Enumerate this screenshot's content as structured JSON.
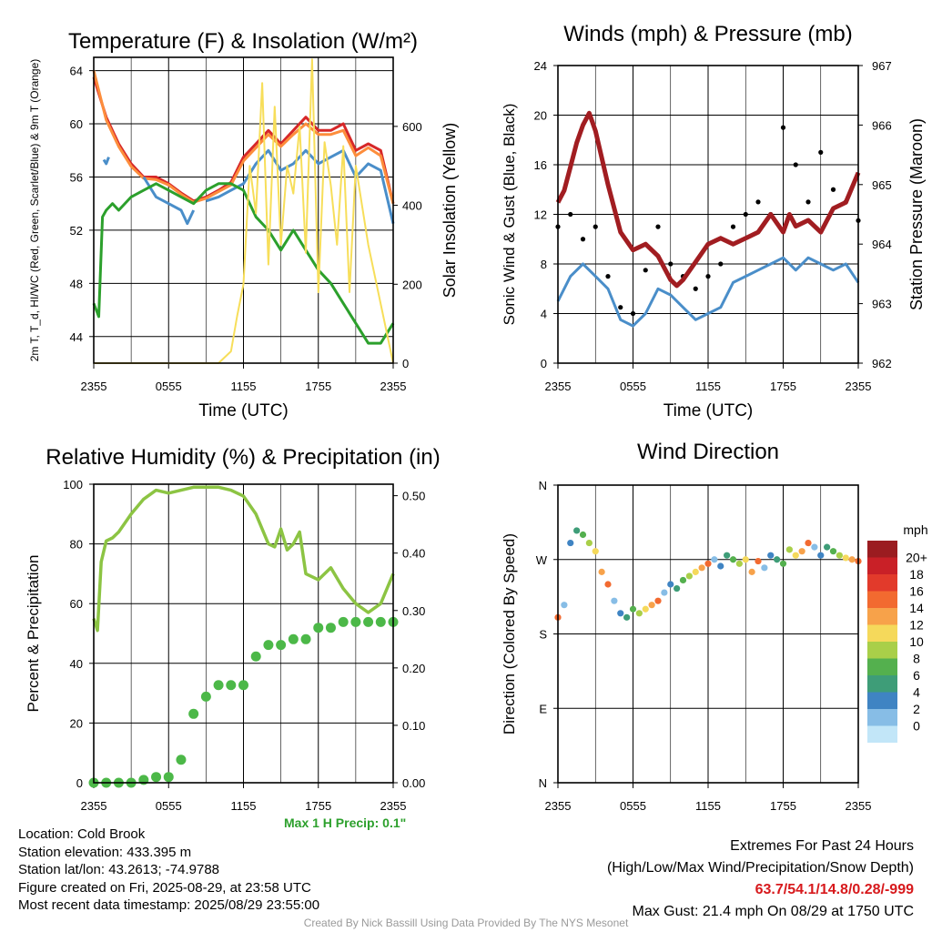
{
  "chart_data": [
    {
      "type": "line",
      "title": "Temperature (F) & Insolation (W/m²)",
      "xlabel": "Time (UTC)",
      "ylabel": "2m T, T_d, HI/WC (Red, Green, Scarlet/Blue) & 9m T (Orange)",
      "ylabel2": "Solar Insolation (Yellow)",
      "x_ticks": [
        "2355",
        "0555",
        "1155",
        "1755",
        "2355"
      ],
      "ylim": [
        42,
        65
      ],
      "y_ticks": [
        44,
        48,
        52,
        56,
        60,
        64
      ],
      "y2lim": [
        0,
        775
      ],
      "y2_ticks": [
        0,
        200,
        400,
        600
      ],
      "grid": true,
      "series": [
        {
          "name": "2m T",
          "color": "#d62728",
          "axis": "left",
          "x": [
            0,
            1,
            2,
            3,
            4,
            5,
            6,
            7,
            8,
            9,
            10,
            11,
            12,
            13,
            14,
            15,
            16,
            17,
            18,
            19,
            20,
            21,
            22,
            23,
            24
          ],
          "values": [
            63.5,
            60.5,
            58.5,
            57,
            56,
            56,
            55.5,
            54.8,
            54.2,
            54.5,
            55,
            55.6,
            57.5,
            58.5,
            59.5,
            58.5,
            59.5,
            60.5,
            59.5,
            59.5,
            60,
            58,
            58.5,
            58,
            54
          ]
        },
        {
          "name": "9m T",
          "color": "#fd8d3c",
          "axis": "left",
          "x": [
            0,
            1,
            2,
            3,
            4,
            5,
            6,
            7,
            8,
            9,
            10,
            11,
            12,
            13,
            14,
            15,
            16,
            17,
            18,
            19,
            20,
            21,
            22,
            23,
            24
          ],
          "values": [
            64,
            60.3,
            58.3,
            56.8,
            55.9,
            55.8,
            55.4,
            54.7,
            54.1,
            54.4,
            54.9,
            55.4,
            57.2,
            58.2,
            59.2,
            58.3,
            59.2,
            60,
            59.2,
            59.2,
            59.5,
            57.6,
            58.2,
            57.6,
            54
          ]
        },
        {
          "name": "HI/WC",
          "color": "#4a8ec9",
          "axis": "left",
          "x": [
            0.8,
            1,
            1.2,
            null,
            4,
            5,
            6,
            7,
            7.5,
            8,
            null,
            9,
            10,
            11,
            12,
            13,
            14,
            15,
            16,
            17,
            18,
            19,
            20,
            21,
            22,
            23,
            24
          ],
          "values": [
            57.3,
            57,
            57.5,
            null,
            56,
            54.5,
            54,
            53.5,
            52.5,
            53.5,
            null,
            54.2,
            54.5,
            55,
            55.5,
            57,
            58,
            56.5,
            57,
            58,
            57,
            57.5,
            58,
            56,
            57,
            56.5,
            52.5
          ]
        },
        {
          "name": "T_d",
          "color": "#2ca02c",
          "axis": "left",
          "x": [
            0,
            0.4,
            0.7,
            1,
            1.5,
            2,
            3,
            4,
            5,
            6,
            7,
            8,
            9,
            10,
            11,
            12,
            13,
            14,
            15,
            16,
            17,
            18,
            19,
            20,
            21,
            22,
            23,
            24
          ],
          "values": [
            46.5,
            45.5,
            53,
            53.5,
            54,
            53.5,
            54.5,
            55,
            55.5,
            55,
            54.5,
            54,
            55,
            55.5,
            55.5,
            55,
            53,
            52,
            50.5,
            52,
            50.5,
            49,
            48,
            46.5,
            45,
            43.5,
            43.5,
            45
          ]
        },
        {
          "name": "Solar",
          "color": "#f7de5a",
          "axis": "right",
          "x": [
            0,
            10,
            11,
            11.5,
            12,
            12.5,
            13,
            13.5,
            14,
            14.5,
            15,
            15.5,
            16,
            16.5,
            17,
            17.5,
            18,
            18.5,
            19,
            19.5,
            20,
            20.5,
            21,
            22,
            23,
            24
          ],
          "values": [
            0,
            0,
            30,
            120,
            200,
            500,
            380,
            710,
            250,
            650,
            300,
            500,
            430,
            600,
            280,
            770,
            180,
            560,
            450,
            300,
            550,
            180,
            500,
            300,
            150,
            0
          ]
        }
      ]
    },
    {
      "type": "line",
      "title": "Winds (mph) & Pressure (mb)",
      "xlabel": "Time (UTC)",
      "ylabel": "Sonic Wind & Gust (Blue, Black)",
      "ylabel2": "Station Pressure (Maroon)",
      "x_ticks": [
        "2355",
        "0555",
        "1155",
        "1755",
        "2355"
      ],
      "ylim": [
        0,
        24
      ],
      "y_ticks": [
        0,
        4,
        8,
        12,
        16,
        20,
        24
      ],
      "y2lim": [
        962,
        967
      ],
      "y2_ticks": [
        962,
        963,
        964,
        965,
        966,
        967
      ],
      "grid": true,
      "series": [
        {
          "name": "Sonic Wind",
          "color": "#4a8ec9",
          "axis": "left",
          "x": [
            0,
            1,
            2,
            3,
            4,
            5,
            6,
            7,
            8,
            9,
            10,
            11,
            12,
            13,
            14,
            15,
            16,
            17,
            18,
            19,
            20,
            21,
            22,
            23,
            24
          ],
          "values": [
            5,
            7,
            8,
            7,
            6,
            3.5,
            3,
            4,
            6,
            5.5,
            4.5,
            3.5,
            4,
            4.5,
            6.5,
            7,
            7.5,
            8,
            8.5,
            7.5,
            8.5,
            8,
            7.5,
            8,
            6.5
          ]
        },
        {
          "name": "Gust",
          "color": "#000000",
          "axis": "left",
          "x": [
            0,
            1,
            2,
            3,
            4,
            5,
            6,
            7,
            8,
            9,
            10,
            11,
            12,
            13,
            14,
            15,
            16,
            17,
            18,
            19,
            20,
            21,
            22,
            23,
            24
          ],
          "values": [
            11,
            12,
            10,
            11,
            7,
            4.5,
            4,
            7.5,
            11,
            8,
            7,
            6,
            7,
            8,
            11,
            12,
            13,
            12,
            19,
            16,
            13,
            17,
            14,
            13,
            11.5
          ]
        },
        {
          "name": "Station Pressure",
          "color": "#a11d21",
          "axis": "right",
          "x": [
            0,
            0.5,
            1,
            1.5,
            2,
            2.5,
            3,
            4,
            5,
            6,
            7,
            8,
            9,
            9.5,
            10,
            11,
            12,
            13,
            14,
            15,
            16,
            17,
            18,
            18.5,
            19,
            20,
            21,
            22,
            23,
            24
          ],
          "values": [
            964.7,
            964.9,
            965.3,
            965.7,
            966,
            966.2,
            965.9,
            965,
            964.2,
            963.9,
            964,
            963.8,
            963.4,
            963.3,
            963.4,
            963.7,
            964,
            964.1,
            964,
            964.1,
            964.2,
            964.5,
            964.2,
            964.5,
            964.3,
            964.4,
            964.2,
            964.6,
            964.7,
            965.2
          ]
        }
      ]
    },
    {
      "type": "line",
      "title": "Relative Humidity (%) & Precipitation (in)",
      "ylabel": "Percent & Precipitation",
      "x_ticks": [
        "2355",
        "0555",
        "1155",
        "1755",
        "2355"
      ],
      "ylim": [
        0,
        100
      ],
      "y_ticks": [
        0,
        20,
        40,
        60,
        80,
        100
      ],
      "y2lim": [
        0,
        0.52
      ],
      "y2_ticks": [
        "0.00",
        "0.10",
        "0.20",
        "0.30",
        "0.40",
        "0.50"
      ],
      "grid": true,
      "series": [
        {
          "name": "RH",
          "color": "#8cc443",
          "axis": "left",
          "x": [
            0,
            0.3,
            0.6,
            1,
            1.5,
            2,
            3,
            4,
            5,
            6,
            7,
            8,
            9,
            10,
            11,
            12,
            13,
            14,
            14.5,
            15,
            15.5,
            16,
            16.5,
            17,
            18,
            19,
            20,
            21,
            22,
            23,
            24
          ],
          "values": [
            55,
            51,
            74,
            81,
            82,
            84,
            90,
            95,
            98,
            97,
            98,
            99,
            99,
            99,
            98,
            96,
            90,
            80,
            79,
            85,
            78,
            80,
            84,
            70,
            68,
            72,
            65,
            60,
            57,
            60,
            70
          ]
        },
        {
          "name": "Precip",
          "color": "#4cb848",
          "axis": "right",
          "x": [
            0,
            1,
            2,
            3,
            4,
            5,
            6,
            7,
            8,
            9,
            10,
            11,
            12,
            13,
            14,
            15,
            16,
            17,
            18,
            19,
            20,
            21,
            22,
            23,
            24
          ],
          "values": [
            0,
            0,
            0,
            0,
            0.005,
            0.01,
            0.01,
            0.04,
            0.12,
            0.15,
            0.17,
            0.17,
            0.17,
            0.22,
            0.24,
            0.24,
            0.25,
            0.25,
            0.27,
            0.27,
            0.28,
            0.28,
            0.28,
            0.28,
            0.28
          ]
        }
      ]
    },
    {
      "type": "scatter",
      "title": "Wind Direction",
      "ylabel": "Direction (Colored By Speed)",
      "x_ticks": [
        "2355",
        "0555",
        "1155",
        "1755",
        "2355"
      ],
      "y_ticks": [
        "N",
        "E",
        "S",
        "W",
        "N"
      ],
      "ylim": [
        0,
        360
      ],
      "grid": true,
      "legend_title": "mph",
      "legend_labels": [
        "20+",
        "18",
        "16",
        "14",
        "12",
        "10",
        "8",
        "6",
        "4",
        "2",
        "0"
      ],
      "legend_colors": [
        "#9b1c20",
        "#c92027",
        "#e23a2b",
        "#f26a30",
        "#f7a24a",
        "#f5d95b",
        "#a9cf49",
        "#54b04e",
        "#3e9d78",
        "#3f84c3",
        "#87bde6",
        "#c2e6f8"
      ],
      "series": [
        {
          "name": "Direction",
          "color": "#3e9d78",
          "x": [
            0,
            0.5,
            1,
            1.5,
            2,
            2.5,
            3,
            3.5,
            4,
            4.5,
            5,
            5.5,
            6,
            6.5,
            7,
            7.5,
            8,
            8.5,
            9,
            9.5,
            10,
            10.5,
            11,
            11.5,
            12,
            12.5,
            13,
            13.5,
            14,
            14.5,
            15,
            15.5,
            16,
            16.5,
            17,
            17.5,
            18,
            18.5,
            19,
            19.5,
            20,
            20.5,
            21,
            21.5,
            22,
            22.5,
            23,
            23.5,
            24
          ],
          "values": [
            200,
            215,
            290,
            305,
            300,
            290,
            280,
            255,
            240,
            220,
            205,
            200,
            210,
            205,
            210,
            215,
            220,
            230,
            240,
            235,
            245,
            250,
            255,
            260,
            265,
            270,
            262,
            275,
            270,
            265,
            270,
            255,
            268,
            260,
            275,
            270,
            265,
            282,
            275,
            280,
            290,
            285,
            275,
            285,
            280,
            275,
            272,
            270,
            268
          ]
        }
      ]
    }
  ],
  "info": {
    "location": "Location: Cold Brook",
    "elevation": "Station elevation: 433.395 m",
    "latlon": "Station lat/lon: 43.2613; -74.9788",
    "created": "Figure created on Fri, 2025-08-29, at 23:58 UTC",
    "recent": "Most recent data timestamp: 2025/08/29 23:55:00"
  },
  "extremes": {
    "title": "Extremes For Past 24 Hours",
    "subtitle": "(High/Low/Max Wind/Precipitation/Snow Depth)",
    "values": "63.7/54.1/14.8/0.28/-999",
    "gust": "Max Gust: 21.4 mph On 08/29 at 1750 UTC"
  },
  "max_precip": "Max 1 H Precip: 0.1\"",
  "credit": "Created By Nick Bassill Using Data Provided By The NYS Mesonet"
}
